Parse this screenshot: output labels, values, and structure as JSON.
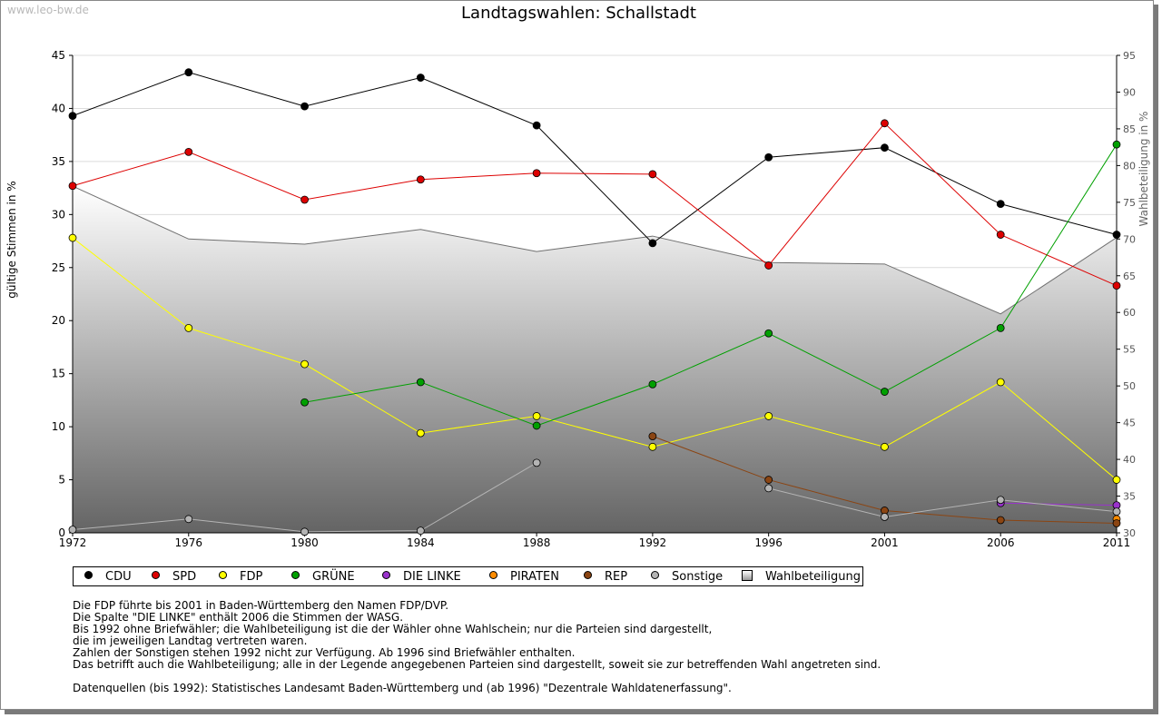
{
  "watermark": "www.leo-bw.de",
  "chart_data": {
    "type": "line",
    "title": "Landtagswahlen: Schallstadt",
    "ylabel": "gültige Stimmen in %",
    "y2label": "Wahlbeteiligung in %",
    "ylim": [
      0,
      45
    ],
    "y2lim": [
      30,
      95
    ],
    "yticks": [
      0,
      5,
      10,
      15,
      20,
      25,
      30,
      35,
      40,
      45
    ],
    "y2ticks": [
      30,
      35,
      40,
      45,
      50,
      55,
      60,
      65,
      70,
      75,
      80,
      85,
      90,
      95
    ],
    "x": [
      "1972",
      "1976",
      "1980",
      "1984",
      "1988",
      "1992",
      "1996",
      "2001",
      "2006",
      "2011"
    ],
    "series": [
      {
        "name": "CDU",
        "color": "#000000",
        "values": [
          39.3,
          43.4,
          40.2,
          42.9,
          38.4,
          27.3,
          35.4,
          36.3,
          31.0,
          28.1
        ]
      },
      {
        "name": "SPD",
        "color": "#dd0000",
        "values": [
          32.7,
          35.9,
          31.4,
          33.3,
          33.9,
          33.8,
          25.2,
          38.6,
          28.1,
          23.3
        ]
      },
      {
        "name": "FDP",
        "color": "#ffff00",
        "values": [
          27.8,
          19.3,
          15.9,
          9.4,
          11.0,
          8.1,
          11.0,
          8.1,
          14.2,
          5.0
        ]
      },
      {
        "name": "GRÜNE",
        "color": "#00a000",
        "values": [
          null,
          null,
          12.3,
          14.2,
          10.1,
          14.0,
          18.8,
          13.3,
          19.3,
          36.6
        ]
      },
      {
        "name": "DIE LINKE",
        "color": "#9932cc",
        "values": [
          null,
          null,
          null,
          null,
          null,
          null,
          null,
          null,
          2.8,
          2.6
        ]
      },
      {
        "name": "PIRATEN",
        "color": "#ff8c00",
        "values": [
          null,
          null,
          null,
          null,
          null,
          null,
          null,
          null,
          null,
          1.3
        ]
      },
      {
        "name": "REP",
        "color": "#8b4513",
        "values": [
          null,
          null,
          null,
          null,
          null,
          9.1,
          5.0,
          2.1,
          1.2,
          0.9
        ]
      },
      {
        "name": "Sonstige",
        "color": "#b4b4b4",
        "values": [
          0.3,
          1.3,
          0.1,
          0.2,
          6.6,
          null,
          4.2,
          1.5,
          3.1,
          2.0
        ]
      }
    ],
    "turnout": {
      "name": "Wahlbeteiligung",
      "axis": "right",
      "values": [
        77.2,
        70.0,
        69.3,
        71.3,
        68.3,
        70.4,
        66.8,
        66.6,
        59.8,
        70.2
      ]
    },
    "legend_position": "bottom"
  },
  "notes": [
    "Die FDP führte bis 2001 in Baden-Württemberg den Namen FDP/DVP.",
    "Die Spalte \"DIE LINKE\" enthält 2006 die Stimmen der WASG.",
    "Bis 1992 ohne Briefwähler; die Wahlbeteiligung ist die der Wähler ohne Wahlschein; nur die Parteien sind dargestellt,",
    "die im jeweiligen Landtag vertreten waren.",
    "Zahlen der Sonstigen stehen 1992 nicht zur Verfügung. Ab 1996 sind Briefwähler enthalten.",
    "Das betrifft auch die Wahlbeteiligung; alle in der Legende angegebenen Parteien sind dargestellt, soweit sie zur betreffenden Wahl angetreten sind."
  ],
  "source": "Datenquellen (bis 1992): Statistisches Landesamt Baden-Württemberg und (ab 1996) \"Dezentrale Wahldatenerfassung\"."
}
